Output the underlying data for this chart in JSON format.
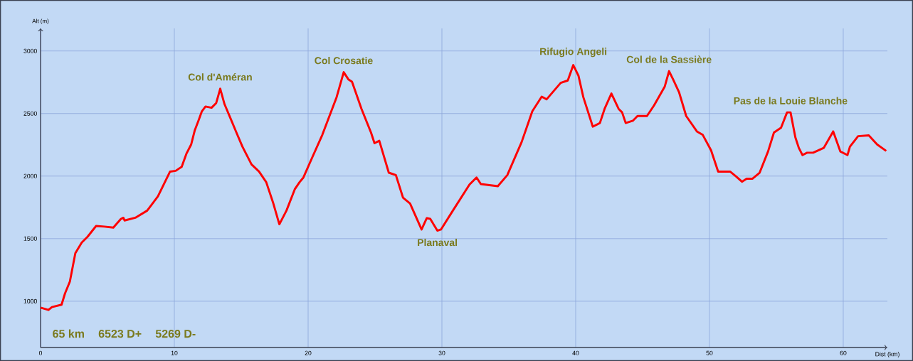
{
  "chart_data": {
    "type": "line",
    "xlabel": "Dist (km)",
    "ylabel": "Alt (m)",
    "xlim": [
      0,
      63.3
    ],
    "ylim": [
      630,
      3180
    ],
    "xticks": [
      0,
      10,
      20,
      30,
      40,
      50,
      60
    ],
    "yticks": [
      1000,
      1500,
      2000,
      2500,
      3000
    ],
    "grid": true,
    "line_style": "solid",
    "series": [
      {
        "color": "#ff0000",
        "x": [
          0,
          0.59,
          0.85,
          1.57,
          1.83,
          2.19,
          2.6,
          3.08,
          3.52,
          4.15,
          4.77,
          5.44,
          6.01,
          6.19,
          6.28,
          7.08,
          7.97,
          8.77,
          9.68,
          10.1,
          10.55,
          10.9,
          11.26,
          11.53,
          11.8,
          12.06,
          12.33,
          12.78,
          13.13,
          13.43,
          13.75,
          14.2,
          14.64,
          15.09,
          15.77,
          16.33,
          16.87,
          17.4,
          17.85,
          18.38,
          19.0,
          19.36,
          19.65,
          20.35,
          21.06,
          22.13,
          22.66,
          23.01,
          23.28,
          23.99,
          24.7,
          24.96,
          25.32,
          26.03,
          26.56,
          27.09,
          27.62,
          28.48,
          28.87,
          29.13,
          29.66,
          29.93,
          30.82,
          32.06,
          32.59,
          32.91,
          34.18,
          34.89,
          35.96,
          36.76,
          37.46,
          37.82,
          38.88,
          39.41,
          39.82,
          40.21,
          40.57,
          41.28,
          41.81,
          42.16,
          42.67,
          43.21,
          43.47,
          43.74,
          44.27,
          44.62,
          45.33,
          45.86,
          46.66,
          46.98,
          47.28,
          47.73,
          48.26,
          49.06,
          49.5,
          50.12,
          50.65,
          51.54,
          51.98,
          52.43,
          52.78,
          53.22,
          53.75,
          54.38,
          54.82,
          55.35,
          55.8,
          56.06,
          56.42,
          56.68,
          56.95,
          57.3,
          57.75,
          58.54,
          59.25,
          59.78,
          60.32,
          60.5,
          61.11,
          61.91,
          62.53,
          63.21
        ],
        "values": [
          949,
          930,
          953,
          972,
          1063,
          1157,
          1384,
          1469,
          1516,
          1601,
          1596,
          1588,
          1658,
          1667,
          1645,
          1667,
          1724,
          1838,
          2036,
          2042,
          2074,
          2178,
          2253,
          2367,
          2442,
          2518,
          2556,
          2546,
          2584,
          2698,
          2575,
          2461,
          2348,
          2235,
          2093,
          2036,
          1951,
          1781,
          1615,
          1724,
          1894,
          1951,
          1989,
          2159,
          2329,
          2631,
          2830,
          2773,
          2754,
          2537,
          2348,
          2263,
          2282,
          2027,
          2008,
          1828,
          1781,
          1573,
          1664,
          1658,
          1564,
          1573,
          1724,
          1932,
          1989,
          1936,
          1919,
          2008,
          2272,
          2518,
          2635,
          2613,
          2745,
          2764,
          2887,
          2802,
          2631,
          2395,
          2424,
          2537,
          2660,
          2537,
          2509,
          2424,
          2442,
          2480,
          2480,
          2565,
          2716,
          2839,
          2773,
          2669,
          2480,
          2357,
          2329,
          2206,
          2036,
          2036,
          1998,
          1955,
          1979,
          1979,
          2027,
          2197,
          2348,
          2386,
          2509,
          2509,
          2310,
          2225,
          2168,
          2187,
          2187,
          2225,
          2357,
          2197,
          2168,
          2235,
          2319,
          2325,
          2253,
          2201
        ]
      }
    ],
    "annotations": [
      {
        "text": "Col d'Améran",
        "x": 13.43,
        "y": 2698
      },
      {
        "text": "Col Crosatie",
        "x": 22.66,
        "y": 2830
      },
      {
        "text": "Planaval",
        "x": 29.66,
        "y": 1564
      },
      {
        "text": "Rifugio Angeli",
        "x": 39.82,
        "y": 2887
      },
      {
        "text": "Col de la Sassière",
        "x": 46.98,
        "y": 2839
      },
      {
        "text": "Pas de la Louie Blanche",
        "x": 56.06,
        "y": 2509
      },
      "65 km",
      "6523 D+",
      "5269 D-"
    ]
  }
}
